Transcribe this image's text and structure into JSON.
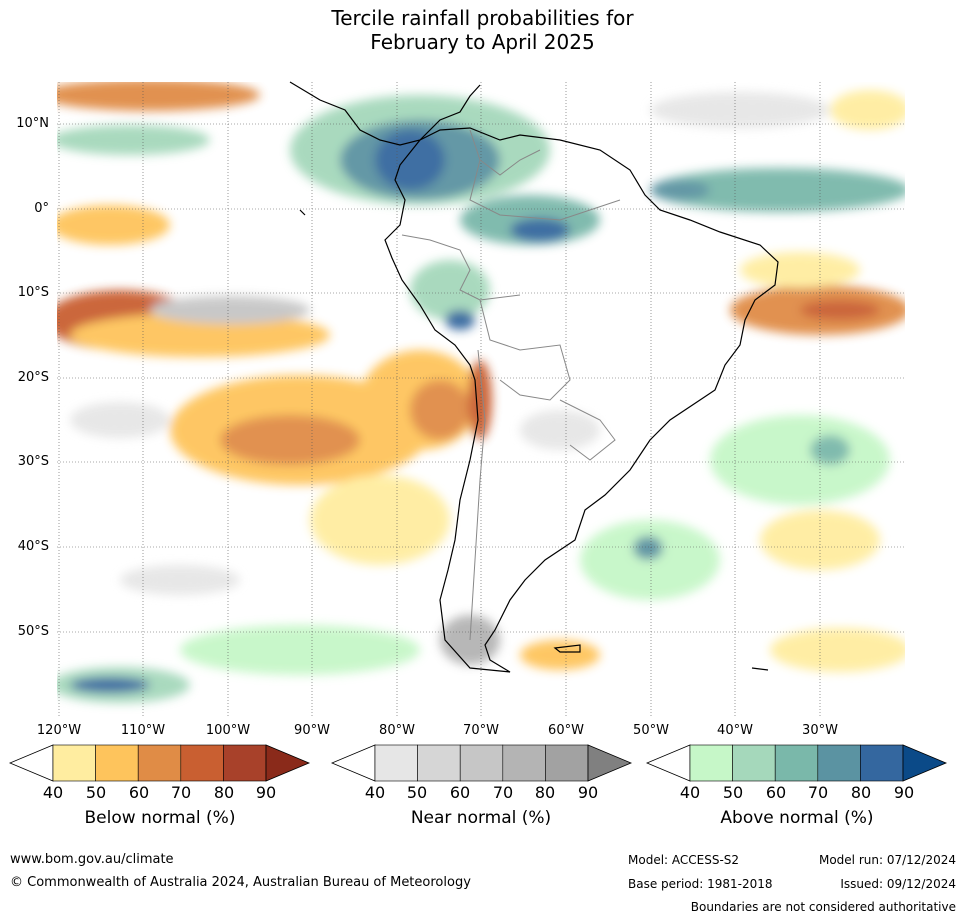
{
  "title_line1": "Tercile rainfall probabilities for",
  "title_line2": "February to April 2025",
  "lat_labels": [
    "10°N",
    "0°",
    "10°S",
    "20°S",
    "30°S",
    "40°S",
    "50°S"
  ],
  "lon_labels": [
    "120°W",
    "110°W",
    "100°W",
    "90°W",
    "80°W",
    "70°W",
    "60°W",
    "50°W",
    "40°W",
    "30°W"
  ],
  "colorbars": [
    {
      "title": "Below normal (%)",
      "ticks": [
        "40",
        "50",
        "60",
        "70",
        "80",
        "90"
      ],
      "colors": [
        "#ffffff",
        "#ffeda0",
        "#fec45c",
        "#e08c46",
        "#c95f31",
        "#a8412a",
        "#8a2a1a"
      ]
    },
    {
      "title": "Near normal (%)",
      "ticks": [
        "40",
        "50",
        "60",
        "70",
        "80",
        "90"
      ],
      "colors": [
        "#ffffff",
        "#e6e6e6",
        "#d6d6d6",
        "#c6c6c6",
        "#b4b4b4",
        "#a2a2a2",
        "#808080"
      ]
    },
    {
      "title": "Above normal (%)",
      "ticks": [
        "40",
        "50",
        "60",
        "70",
        "80",
        "90"
      ],
      "colors": [
        "#ffffff",
        "#c6f7c8",
        "#a5d8bb",
        "#7ab8aa",
        "#5b93a2",
        "#34679f",
        "#0b4a88"
      ]
    }
  ],
  "footer": {
    "website": "www.bom.gov.au/climate",
    "copyright": "© Commonwealth of Australia 2024, Australian Bureau of Meteorology",
    "model": "Model: ACCESS-S2",
    "model_run": "Model run: 07/12/2024",
    "base_period": "Base period: 1981-2018",
    "issued": "Issued: 09/12/2024",
    "boundaries": "Boundaries are not considered authoritative"
  }
}
